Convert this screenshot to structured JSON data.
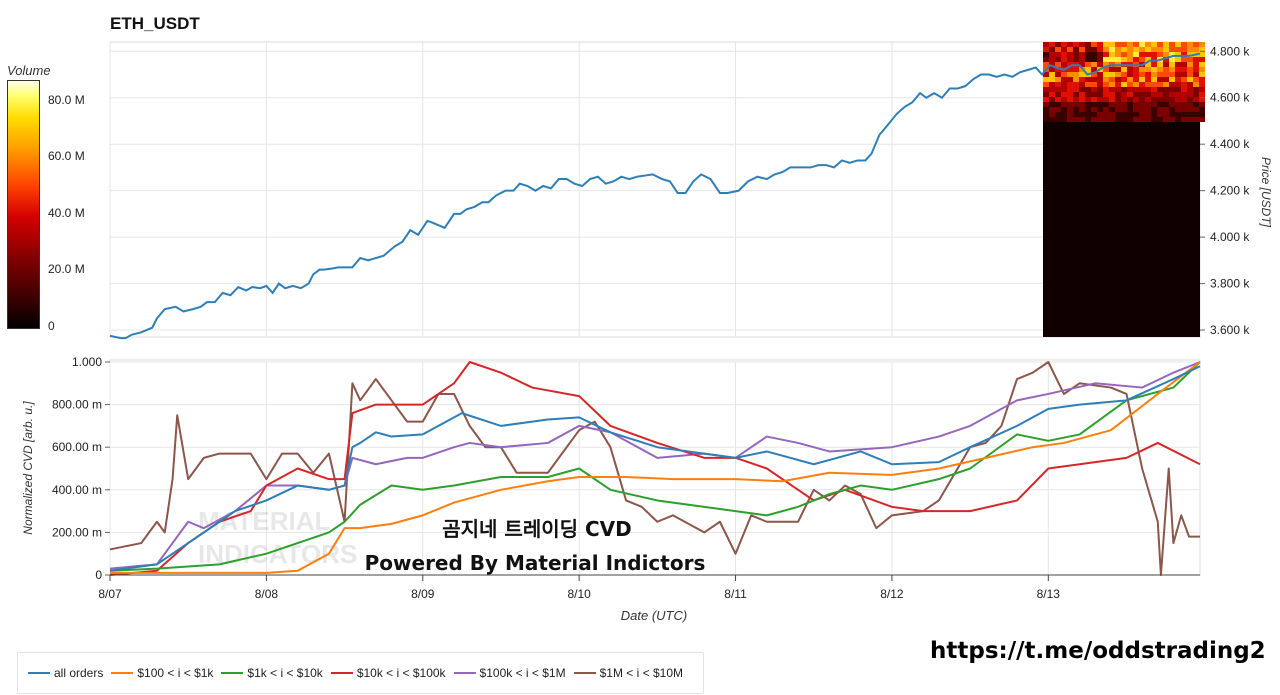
{
  "chart_data": [
    {
      "type": "line",
      "title": "ETH_USDT",
      "ylabel": "Price [USDT]",
      "ylim": [
        3570,
        4840
      ],
      "yticks": [
        "3.600 k",
        "3.800 k",
        "4.000 k",
        "4.200 k",
        "4.400 k",
        "4.600 k",
        "4.800 k"
      ],
      "ytick_values": [
        3600,
        3800,
        4000,
        4200,
        4400,
        4600,
        4800
      ],
      "xlim": [
        0,
        6.97
      ],
      "colorbar": {
        "title": "Volume",
        "ticks": [
          "0",
          "20.0 M",
          "40.0 M",
          "60.0 M",
          "80.0 M"
        ]
      },
      "series": [
        {
          "color": "#2e7fb8",
          "x": [
            0,
            0.07,
            0.1,
            0.14,
            0.2,
            0.27,
            0.3,
            0.35,
            0.42,
            0.47,
            0.53,
            0.58,
            0.62,
            0.67,
            0.72,
            0.77,
            0.82,
            0.87,
            0.91,
            0.96,
            1,
            1.04,
            1.08,
            1.12,
            1.17,
            1.22,
            1.27,
            1.3,
            1.34,
            1.37,
            1.42,
            1.46,
            1.5,
            1.55,
            1.6,
            1.65,
            1.7,
            1.75,
            1.82,
            1.87,
            1.92,
            1.97,
            2.03,
            2.07,
            2.14,
            2.2,
            2.24,
            2.28,
            2.33,
            2.38,
            2.42,
            2.47,
            2.53,
            2.58,
            2.62,
            2.67,
            2.72,
            2.77,
            2.82,
            2.87,
            2.92,
            2.97,
            3.02,
            3.07,
            3.12,
            3.17,
            3.22,
            3.27,
            3.32,
            3.37,
            3.42,
            3.47,
            3.53,
            3.58,
            3.63,
            3.68,
            3.73,
            3.78,
            3.84,
            3.9,
            3.95,
            4.02,
            4.08,
            4.14,
            4.2,
            4.25,
            4.3,
            4.35,
            4.42,
            4.48,
            4.53,
            4.58,
            4.63,
            4.68,
            4.73,
            4.78,
            4.83,
            4.87,
            4.92,
            4.97,
            5.03,
            5.08,
            5.13,
            5.18,
            5.22,
            5.27,
            5.32,
            5.37,
            5.42,
            5.47,
            5.52,
            5.57,
            5.62,
            5.67,
            5.72,
            5.77,
            5.82,
            5.87,
            5.92,
            5.96,
            6.01,
            6.05,
            6.1,
            6.15,
            6.2,
            6.25,
            6.3,
            6.35,
            6.4,
            6.45,
            6.5,
            6.55,
            6.6,
            6.65,
            6.7,
            6.75,
            6.8,
            6.85,
            6.9,
            6.97
          ],
          "values": [
            3575,
            3565,
            3565,
            3580,
            3590,
            3610,
            3650,
            3690,
            3700,
            3680,
            3690,
            3700,
            3720,
            3720,
            3760,
            3750,
            3785,
            3770,
            3785,
            3780,
            3790,
            3760,
            3800,
            3780,
            3790,
            3780,
            3800,
            3840,
            3860,
            3860,
            3865,
            3870,
            3870,
            3870,
            3910,
            3900,
            3910,
            3920,
            3960,
            3980,
            4030,
            4010,
            4070,
            4060,
            4040,
            4100,
            4100,
            4120,
            4130,
            4150,
            4150,
            4180,
            4200,
            4200,
            4230,
            4220,
            4200,
            4220,
            4210,
            4250,
            4250,
            4230,
            4220,
            4250,
            4260,
            4230,
            4240,
            4260,
            4250,
            4260,
            4265,
            4270,
            4250,
            4240,
            4190,
            4190,
            4240,
            4270,
            4250,
            4190,
            4190,
            4200,
            4240,
            4260,
            4250,
            4270,
            4280,
            4300,
            4300,
            4300,
            4310,
            4310,
            4300,
            4330,
            4320,
            4330,
            4330,
            4360,
            4440,
            4480,
            4530,
            4560,
            4580,
            4620,
            4600,
            4620,
            4600,
            4640,
            4640,
            4650,
            4680,
            4700,
            4700,
            4690,
            4700,
            4690,
            4710,
            4720,
            4730,
            4700,
            4740,
            4730,
            4720,
            4740,
            4740,
            4700,
            4710,
            4730,
            4740,
            4740,
            4740,
            4740,
            4740,
            4760,
            4760,
            4770,
            4780,
            4780,
            4780,
            4790
          ]
        }
      ]
    },
    {
      "type": "line",
      "ylabel": "Normalized CVD [arb. u.]",
      "xlabel": "Date (UTC)",
      "ylim": [
        0,
        1
      ],
      "yticks": [
        "0",
        "200.00 m",
        "400.00 m",
        "600.00 m",
        "800.00 m",
        "1.000"
      ],
      "ytick_values": [
        0,
        0.2,
        0.4,
        0.6,
        0.8,
        1
      ],
      "xticks": [
        "8/07",
        "8/08",
        "8/09",
        "8/10",
        "8/11",
        "8/12",
        "8/13"
      ],
      "xtick_values": [
        0,
        1,
        2,
        3,
        4,
        5,
        6
      ],
      "xlim": [
        0,
        6.97
      ],
      "series": [
        {
          "name": "all orders",
          "color": "#2e7fb8",
          "x": [
            0,
            0.3,
            0.5,
            0.6,
            0.8,
            1,
            1.2,
            1.4,
            1.5,
            1.55,
            1.6,
            1.7,
            1.8,
            2,
            2.1,
            2.25,
            2.5,
            2.8,
            3,
            3.2,
            3.5,
            3.8,
            4,
            4.2,
            4.5,
            4.8,
            5,
            5.3,
            5.5,
            5.8,
            6,
            6.2,
            6.5,
            6.8,
            6.97
          ],
          "values": [
            0.02,
            0.05,
            0.15,
            0.2,
            0.3,
            0.35,
            0.42,
            0.4,
            0.42,
            0.6,
            0.62,
            0.67,
            0.65,
            0.66,
            0.7,
            0.76,
            0.7,
            0.73,
            0.74,
            0.67,
            0.6,
            0.57,
            0.55,
            0.58,
            0.52,
            0.58,
            0.52,
            0.53,
            0.6,
            0.7,
            0.78,
            0.8,
            0.82,
            0.92,
            0.98
          ]
        },
        {
          "name": "$100 < i < $1k",
          "color": "#ff7f0e",
          "x": [
            0,
            0.5,
            1,
            1.2,
            1.4,
            1.5,
            1.6,
            1.8,
            2,
            2.2,
            2.5,
            2.8,
            3,
            3.3,
            3.6,
            4,
            4.3,
            4.6,
            5,
            5.3,
            5.6,
            5.9,
            6.1,
            6.4,
            6.7,
            6.97
          ],
          "values": [
            0.01,
            0.01,
            0.01,
            0.02,
            0.1,
            0.22,
            0.22,
            0.24,
            0.28,
            0.34,
            0.4,
            0.44,
            0.46,
            0.46,
            0.45,
            0.45,
            0.44,
            0.48,
            0.47,
            0.5,
            0.55,
            0.6,
            0.62,
            0.68,
            0.85,
            1.0
          ]
        },
        {
          "name": "$1k < i < $10k",
          "color": "#2ca02c",
          "x": [
            0,
            0.3,
            0.5,
            0.7,
            1,
            1.2,
            1.4,
            1.5,
            1.6,
            1.8,
            2,
            2.2,
            2.5,
            2.8,
            3,
            3.2,
            3.5,
            3.8,
            4,
            4.2,
            4.4,
            4.6,
            4.8,
            5,
            5.3,
            5.5,
            5.8,
            6,
            6.2,
            6.5,
            6.8,
            6.97
          ],
          "values": [
            0.02,
            0.03,
            0.04,
            0.05,
            0.1,
            0.15,
            0.2,
            0.25,
            0.33,
            0.42,
            0.4,
            0.42,
            0.46,
            0.46,
            0.5,
            0.4,
            0.35,
            0.32,
            0.3,
            0.28,
            0.32,
            0.38,
            0.42,
            0.4,
            0.45,
            0.5,
            0.66,
            0.63,
            0.66,
            0.82,
            0.88,
            1.0
          ]
        },
        {
          "name": "$10k < i < $100k",
          "color": "#d62728",
          "x": [
            0,
            0.3,
            0.5,
            0.7,
            0.9,
            1,
            1.2,
            1.4,
            1.5,
            1.55,
            1.7,
            1.9,
            2,
            2.2,
            2.3,
            2.5,
            2.7,
            3,
            3.2,
            3.5,
            3.8,
            4,
            4.2,
            4.4,
            4.5,
            4.7,
            5,
            5.2,
            5.5,
            5.8,
            6,
            6.2,
            6.5,
            6.7,
            6.97
          ],
          "values": [
            0,
            0.02,
            0.15,
            0.25,
            0.3,
            0.42,
            0.5,
            0.45,
            0.45,
            0.76,
            0.8,
            0.8,
            0.8,
            0.9,
            1.0,
            0.95,
            0.88,
            0.84,
            0.7,
            0.62,
            0.55,
            0.55,
            0.5,
            0.4,
            0.35,
            0.4,
            0.32,
            0.3,
            0.3,
            0.35,
            0.5,
            0.52,
            0.55,
            0.62,
            0.52
          ]
        },
        {
          "name": "$100k < i < $1M",
          "color": "#9467bd",
          "x": [
            0,
            0.3,
            0.4,
            0.5,
            0.6,
            0.8,
            1,
            1.2,
            1.4,
            1.5,
            1.55,
            1.7,
            1.9,
            2,
            2.2,
            2.3,
            2.5,
            2.8,
            3,
            3.2,
            3.5,
            3.8,
            4,
            4.2,
            4.4,
            4.6,
            5,
            5.3,
            5.5,
            5.8,
            6,
            6.3,
            6.6,
            6.8,
            6.97
          ],
          "values": [
            0.03,
            0.05,
            0.15,
            0.25,
            0.22,
            0.3,
            0.42,
            0.42,
            0.4,
            0.42,
            0.55,
            0.52,
            0.55,
            0.55,
            0.6,
            0.62,
            0.6,
            0.62,
            0.7,
            0.67,
            0.55,
            0.57,
            0.55,
            0.65,
            0.62,
            0.58,
            0.6,
            0.65,
            0.7,
            0.82,
            0.85,
            0.9,
            0.88,
            0.95,
            1.0
          ]
        },
        {
          "name": "$1M < i < $10M",
          "color": "#8c564b",
          "x": [
            0,
            0.2,
            0.3,
            0.35,
            0.4,
            0.43,
            0.5,
            0.6,
            0.7,
            0.9,
            1,
            1.1,
            1.2,
            1.3,
            1.4,
            1.5,
            1.55,
            1.6,
            1.7,
            1.8,
            1.9,
            2,
            2.1,
            2.2,
            2.3,
            2.4,
            2.5,
            2.6,
            2.8,
            3,
            3.1,
            3.2,
            3.3,
            3.4,
            3.5,
            3.6,
            3.8,
            3.9,
            4,
            4.1,
            4.2,
            4.4,
            4.5,
            4.6,
            4.7,
            4.8,
            4.9,
            5,
            5.2,
            5.3,
            5.5,
            5.6,
            5.7,
            5.8,
            5.9,
            6,
            6.1,
            6.2,
            6.4,
            6.5,
            6.6,
            6.7,
            6.72,
            6.77,
            6.8,
            6.85,
            6.9,
            6.97
          ],
          "values": [
            0.12,
            0.15,
            0.25,
            0.2,
            0.45,
            0.75,
            0.45,
            0.55,
            0.57,
            0.57,
            0.45,
            0.57,
            0.57,
            0.48,
            0.57,
            0.25,
            0.9,
            0.82,
            0.92,
            0.82,
            0.72,
            0.72,
            0.85,
            0.85,
            0.7,
            0.6,
            0.6,
            0.48,
            0.48,
            0.68,
            0.72,
            0.6,
            0.35,
            0.32,
            0.25,
            0.28,
            0.2,
            0.25,
            0.1,
            0.28,
            0.25,
            0.25,
            0.4,
            0.35,
            0.42,
            0.38,
            0.22,
            0.28,
            0.3,
            0.35,
            0.6,
            0.62,
            0.7,
            0.92,
            0.95,
            1.0,
            0.85,
            0.9,
            0.88,
            0.85,
            0.5,
            0.25,
            0.0,
            0.5,
            0.15,
            0.28,
            0.18,
            0.18
          ]
        }
      ]
    }
  ],
  "watermark": {
    "line1": "곰지네 트레이딩 CVD",
    "line2": "Powered By Material Indictors",
    "logo_line1": "MATERIAL",
    "logo_line2": "INDICATORS"
  },
  "link": "https://t.me/oddstrading2"
}
